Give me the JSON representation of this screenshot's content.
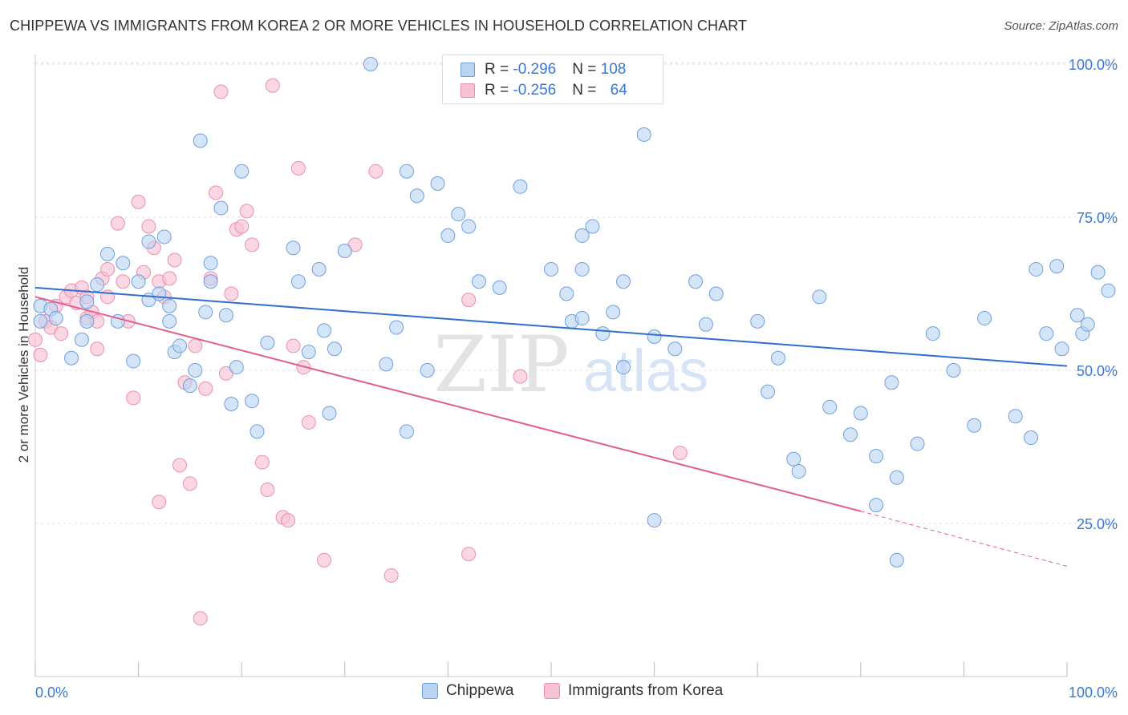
{
  "title": "CHIPPEWA VS IMMIGRANTS FROM KOREA 2 OR MORE VEHICLES IN HOUSEHOLD CORRELATION CHART",
  "source": "Source: ZipAtlas.com",
  "watermark": {
    "zip": "ZIP",
    "atlas": "atlas"
  },
  "legend": {
    "rows": [
      {
        "r_label": "R = ",
        "r_value": "-0.296",
        "n_label": "N = ",
        "n_value": "108"
      },
      {
        "r_label": "R = ",
        "r_value": "-0.256",
        "n_label": "N = ",
        "n_value": "64"
      }
    ]
  },
  "bottom_legend": {
    "series1": "Chippewa",
    "series2": "Immigrants from Korea"
  },
  "colors": {
    "chippewa_fill": "#b9d3f3",
    "chippewa_stroke": "#6f9fe0",
    "chippewa_line": "#2f6fcf",
    "korea_fill": "#f7c2d2",
    "korea_stroke": "#ec8fae",
    "korea_line": "#e0608e",
    "tick_label": "#3a78d8",
    "grid": "#dddddd"
  },
  "chart_data": {
    "type": "scatter",
    "title": "CHIPPEWA VS IMMIGRANTS FROM KOREA 2 OR MORE VEHICLES IN HOUSEHOLD CORRELATION CHART",
    "xlabel": "",
    "ylabel": "2 or more Vehicles in Household",
    "xlim": [
      0,
      100
    ],
    "ylim": [
      0,
      102
    ],
    "x_tick_labels": [
      "0.0%",
      "100.0%"
    ],
    "y_ticks": [
      25,
      50,
      75,
      100
    ],
    "y_tick_labels": [
      "25.0%",
      "50.0%",
      "75.0%",
      "100.0%"
    ],
    "grid": true,
    "legend_position": "top-center",
    "series": [
      {
        "name": "Chippewa",
        "stats": {
          "R": -0.296,
          "N": 108
        },
        "trend": {
          "x": [
            0,
            100
          ],
          "y": [
            63.5,
            50.7
          ]
        },
        "points": [
          [
            0.5,
            60.5
          ],
          [
            0.5,
            58
          ],
          [
            1.5,
            60
          ],
          [
            2,
            58.5
          ],
          [
            4.5,
            55
          ],
          [
            3.5,
            52
          ],
          [
            5,
            58
          ],
          [
            5,
            61.2
          ],
          [
            6,
            64
          ],
          [
            7,
            69
          ],
          [
            8,
            58
          ],
          [
            8.5,
            67.5
          ],
          [
            9.5,
            51.5
          ],
          [
            10,
            64.5
          ],
          [
            11,
            71
          ],
          [
            11,
            61.5
          ],
          [
            12,
            62.5
          ],
          [
            12.5,
            71.8
          ],
          [
            13,
            58
          ],
          [
            13,
            60.5
          ],
          [
            13.5,
            53
          ],
          [
            14,
            54
          ],
          [
            15,
            47.5
          ],
          [
            15.5,
            50
          ],
          [
            16,
            87.5
          ],
          [
            16.5,
            59.5
          ],
          [
            17,
            67.5
          ],
          [
            17,
            64.5
          ],
          [
            18,
            76.5
          ],
          [
            18.5,
            59
          ],
          [
            19,
            44.5
          ],
          [
            19.5,
            50.5
          ],
          [
            20,
            82.5
          ],
          [
            21,
            45
          ],
          [
            21.5,
            40
          ],
          [
            22.5,
            54.5
          ],
          [
            25,
            70
          ],
          [
            25.5,
            64.5
          ],
          [
            26.5,
            53
          ],
          [
            27.5,
            66.5
          ],
          [
            28,
            56.5
          ],
          [
            28.5,
            43
          ],
          [
            29,
            53.5
          ],
          [
            30,
            69.5
          ],
          [
            32.5,
            100
          ],
          [
            34,
            51
          ],
          [
            35,
            57
          ],
          [
            36,
            40
          ],
          [
            36,
            82.5
          ],
          [
            37,
            78.5
          ],
          [
            38,
            50
          ],
          [
            39,
            80.5
          ],
          [
            40,
            72
          ],
          [
            41,
            75.5
          ],
          [
            42,
            73.5
          ],
          [
            43,
            64.5
          ],
          [
            45,
            63.5
          ],
          [
            47,
            80
          ],
          [
            50,
            66.5
          ],
          [
            51.5,
            62.5
          ],
          [
            52,
            58
          ],
          [
            53,
            58.5
          ],
          [
            53,
            72
          ],
          [
            53,
            66.5
          ],
          [
            54,
            73.5
          ],
          [
            55,
            56
          ],
          [
            56,
            59.5
          ],
          [
            57,
            64.5
          ],
          [
            57,
            50.5
          ],
          [
            59,
            88.5
          ],
          [
            60,
            55.5
          ],
          [
            60,
            25.5
          ],
          [
            62,
            53.5
          ],
          [
            64,
            64.5
          ],
          [
            65,
            57.5
          ],
          [
            66,
            62.5
          ],
          [
            70,
            58
          ],
          [
            71,
            46.5
          ],
          [
            72,
            52
          ],
          [
            73.5,
            35.5
          ],
          [
            74,
            33.5
          ],
          [
            76,
            62
          ],
          [
            77,
            44
          ],
          [
            79,
            39.5
          ],
          [
            80,
            43
          ],
          [
            81.5,
            36
          ],
          [
            81.5,
            28
          ],
          [
            83,
            48
          ],
          [
            83.5,
            32.5
          ],
          [
            83.5,
            19
          ],
          [
            85.5,
            38
          ],
          [
            87,
            56
          ],
          [
            89,
            50
          ],
          [
            91,
            41
          ],
          [
            92,
            58.5
          ],
          [
            95,
            42.5
          ],
          [
            96.5,
            39
          ],
          [
            97,
            66.5
          ],
          [
            98,
            56
          ],
          [
            99,
            67
          ],
          [
            99.5,
            53.5
          ],
          [
            101,
            59
          ],
          [
            101.5,
            56
          ],
          [
            102,
            57.5
          ],
          [
            103,
            66
          ],
          [
            104,
            63
          ]
        ]
      },
      {
        "name": "Immigrants from Korea",
        "stats": {
          "R": -0.256,
          "N": 64
        },
        "trend": {
          "x": [
            0,
            80
          ],
          "y": [
            62,
            27
          ]
        },
        "trend_dashed": {
          "x": [
            80,
            100
          ],
          "y": [
            27,
            18
          ]
        },
        "points": [
          [
            0,
            55
          ],
          [
            0.5,
            52.5
          ],
          [
            1,
            58
          ],
          [
            1.5,
            57
          ],
          [
            2,
            60.5
          ],
          [
            2.5,
            56
          ],
          [
            3,
            62
          ],
          [
            3.5,
            63
          ],
          [
            4,
            61
          ],
          [
            4.5,
            63.5
          ],
          [
            5,
            62
          ],
          [
            5,
            58.5
          ],
          [
            5.5,
            59.5
          ],
          [
            6,
            58
          ],
          [
            6,
            53.5
          ],
          [
            6.5,
            65
          ],
          [
            7,
            66.5
          ],
          [
            7,
            62
          ],
          [
            8,
            74
          ],
          [
            8.5,
            64.5
          ],
          [
            9,
            58
          ],
          [
            9.5,
            45.5
          ],
          [
            10,
            77.5
          ],
          [
            10.5,
            66
          ],
          [
            11,
            73.5
          ],
          [
            11.5,
            70
          ],
          [
            12,
            64.5
          ],
          [
            12,
            28.5
          ],
          [
            12.5,
            62
          ],
          [
            13,
            65
          ],
          [
            13.5,
            68
          ],
          [
            14,
            34.5
          ],
          [
            14.5,
            48
          ],
          [
            15,
            31.5
          ],
          [
            15.5,
            54
          ],
          [
            16,
            9.5
          ],
          [
            16.5,
            47
          ],
          [
            17,
            65
          ],
          [
            17.5,
            79
          ],
          [
            18,
            95.5
          ],
          [
            18.5,
            49.5
          ],
          [
            19,
            62.5
          ],
          [
            19.5,
            73
          ],
          [
            20,
            73.5
          ],
          [
            20.5,
            76
          ],
          [
            21,
            70.5
          ],
          [
            22,
            35
          ],
          [
            22.5,
            30.5
          ],
          [
            23,
            96.5
          ],
          [
            24,
            26
          ],
          [
            24.5,
            25.5
          ],
          [
            25,
            54
          ],
          [
            25.5,
            83
          ],
          [
            26,
            50.5
          ],
          [
            26.5,
            41.5
          ],
          [
            28,
            19
          ],
          [
            31,
            70.5
          ],
          [
            33,
            82.5
          ],
          [
            34.5,
            16.5
          ],
          [
            42,
            20
          ],
          [
            42,
            61.5
          ],
          [
            47,
            49
          ],
          [
            62.5,
            36.5
          ]
        ]
      }
    ]
  }
}
